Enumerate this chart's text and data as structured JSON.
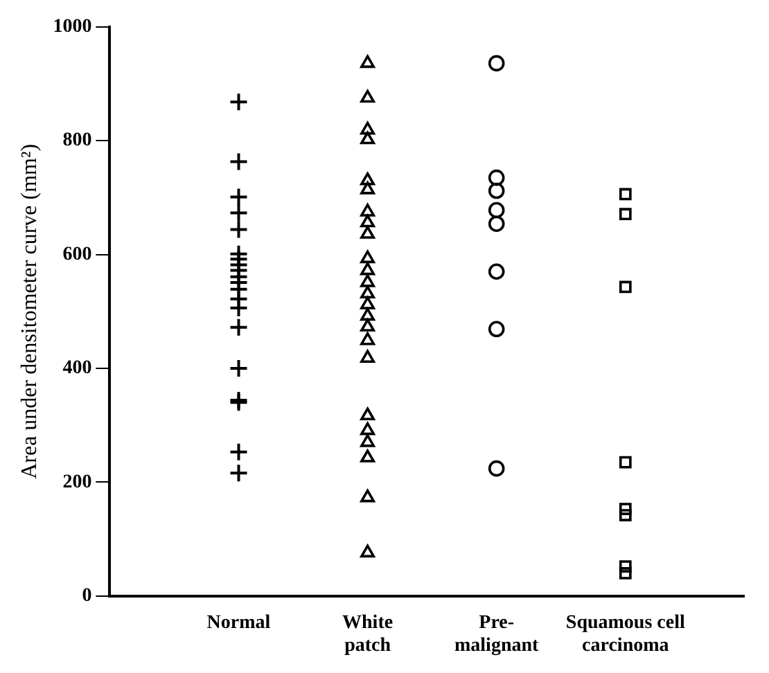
{
  "chart_data": {
    "type": "scatter",
    "ylabel": "Area under densitometer curve (mm²)",
    "categories": [
      "Normal",
      "White patch",
      "Pre-malignant",
      "Squamous cell carcinoma"
    ],
    "ylim": [
      0,
      1000
    ],
    "yticks": [
      0,
      200,
      400,
      600,
      800,
      1000
    ],
    "grid": false,
    "legend": false,
    "series": [
      {
        "marker": "cross",
        "color": "#000000",
        "x": [
          "Normal",
          "Normal",
          "Normal",
          "Normal",
          "Normal",
          "Normal",
          "Normal",
          "Normal",
          "Normal",
          "Normal",
          "Normal",
          "Normal",
          "Normal",
          "Normal",
          "Normal",
          "Normal",
          "Normal",
          "Normal",
          "Normal",
          "Normal"
        ],
        "values": [
          868,
          763,
          701,
          673,
          644,
          601,
          592,
          582,
          572,
          561,
          551,
          539,
          522,
          506,
          472,
          400,
          344,
          340,
          253,
          216
        ]
      },
      {
        "marker": "triangle",
        "color": "#000000",
        "x": [
          "White patch",
          "White patch",
          "White patch",
          "White patch",
          "White patch",
          "White patch",
          "White patch",
          "White patch",
          "White patch",
          "White patch",
          "White patch",
          "White patch",
          "White patch",
          "White patch",
          "White patch",
          "White patch",
          "White patch",
          "White patch",
          "White patch",
          "White patch",
          "White patch",
          "White patch"
        ],
        "values": [
          936,
          875,
          819,
          802,
          730,
          714,
          675,
          656,
          636,
          593,
          572,
          551,
          531,
          512,
          492,
          473,
          449,
          418,
          317,
          291,
          270,
          243
        ]
      },
      {
        "marker": "triangle",
        "color": "#000000",
        "x": [
          "White patch",
          "White patch"
        ],
        "values": [
          173,
          76
        ]
      },
      {
        "marker": "circle",
        "color": "#000000",
        "x": [
          "Pre-malignant",
          "Pre-malignant",
          "Pre-malignant",
          "Pre-malignant",
          "Pre-malignant",
          "Pre-malignant",
          "Pre-malignant",
          "Pre-malignant"
        ],
        "values": [
          936,
          735,
          712,
          678,
          654,
          570,
          469,
          224
        ]
      },
      {
        "marker": "square",
        "color": "#000000",
        "x": [
          "Squamous cell carcinoma",
          "Squamous cell carcinoma",
          "Squamous cell carcinoma",
          "Squamous cell carcinoma",
          "Squamous cell carcinoma",
          "Squamous cell carcinoma",
          "Squamous cell carcinoma",
          "Squamous cell carcinoma"
        ],
        "values": [
          706,
          671,
          543,
          235,
          153,
          142,
          52,
          40
        ]
      }
    ]
  }
}
